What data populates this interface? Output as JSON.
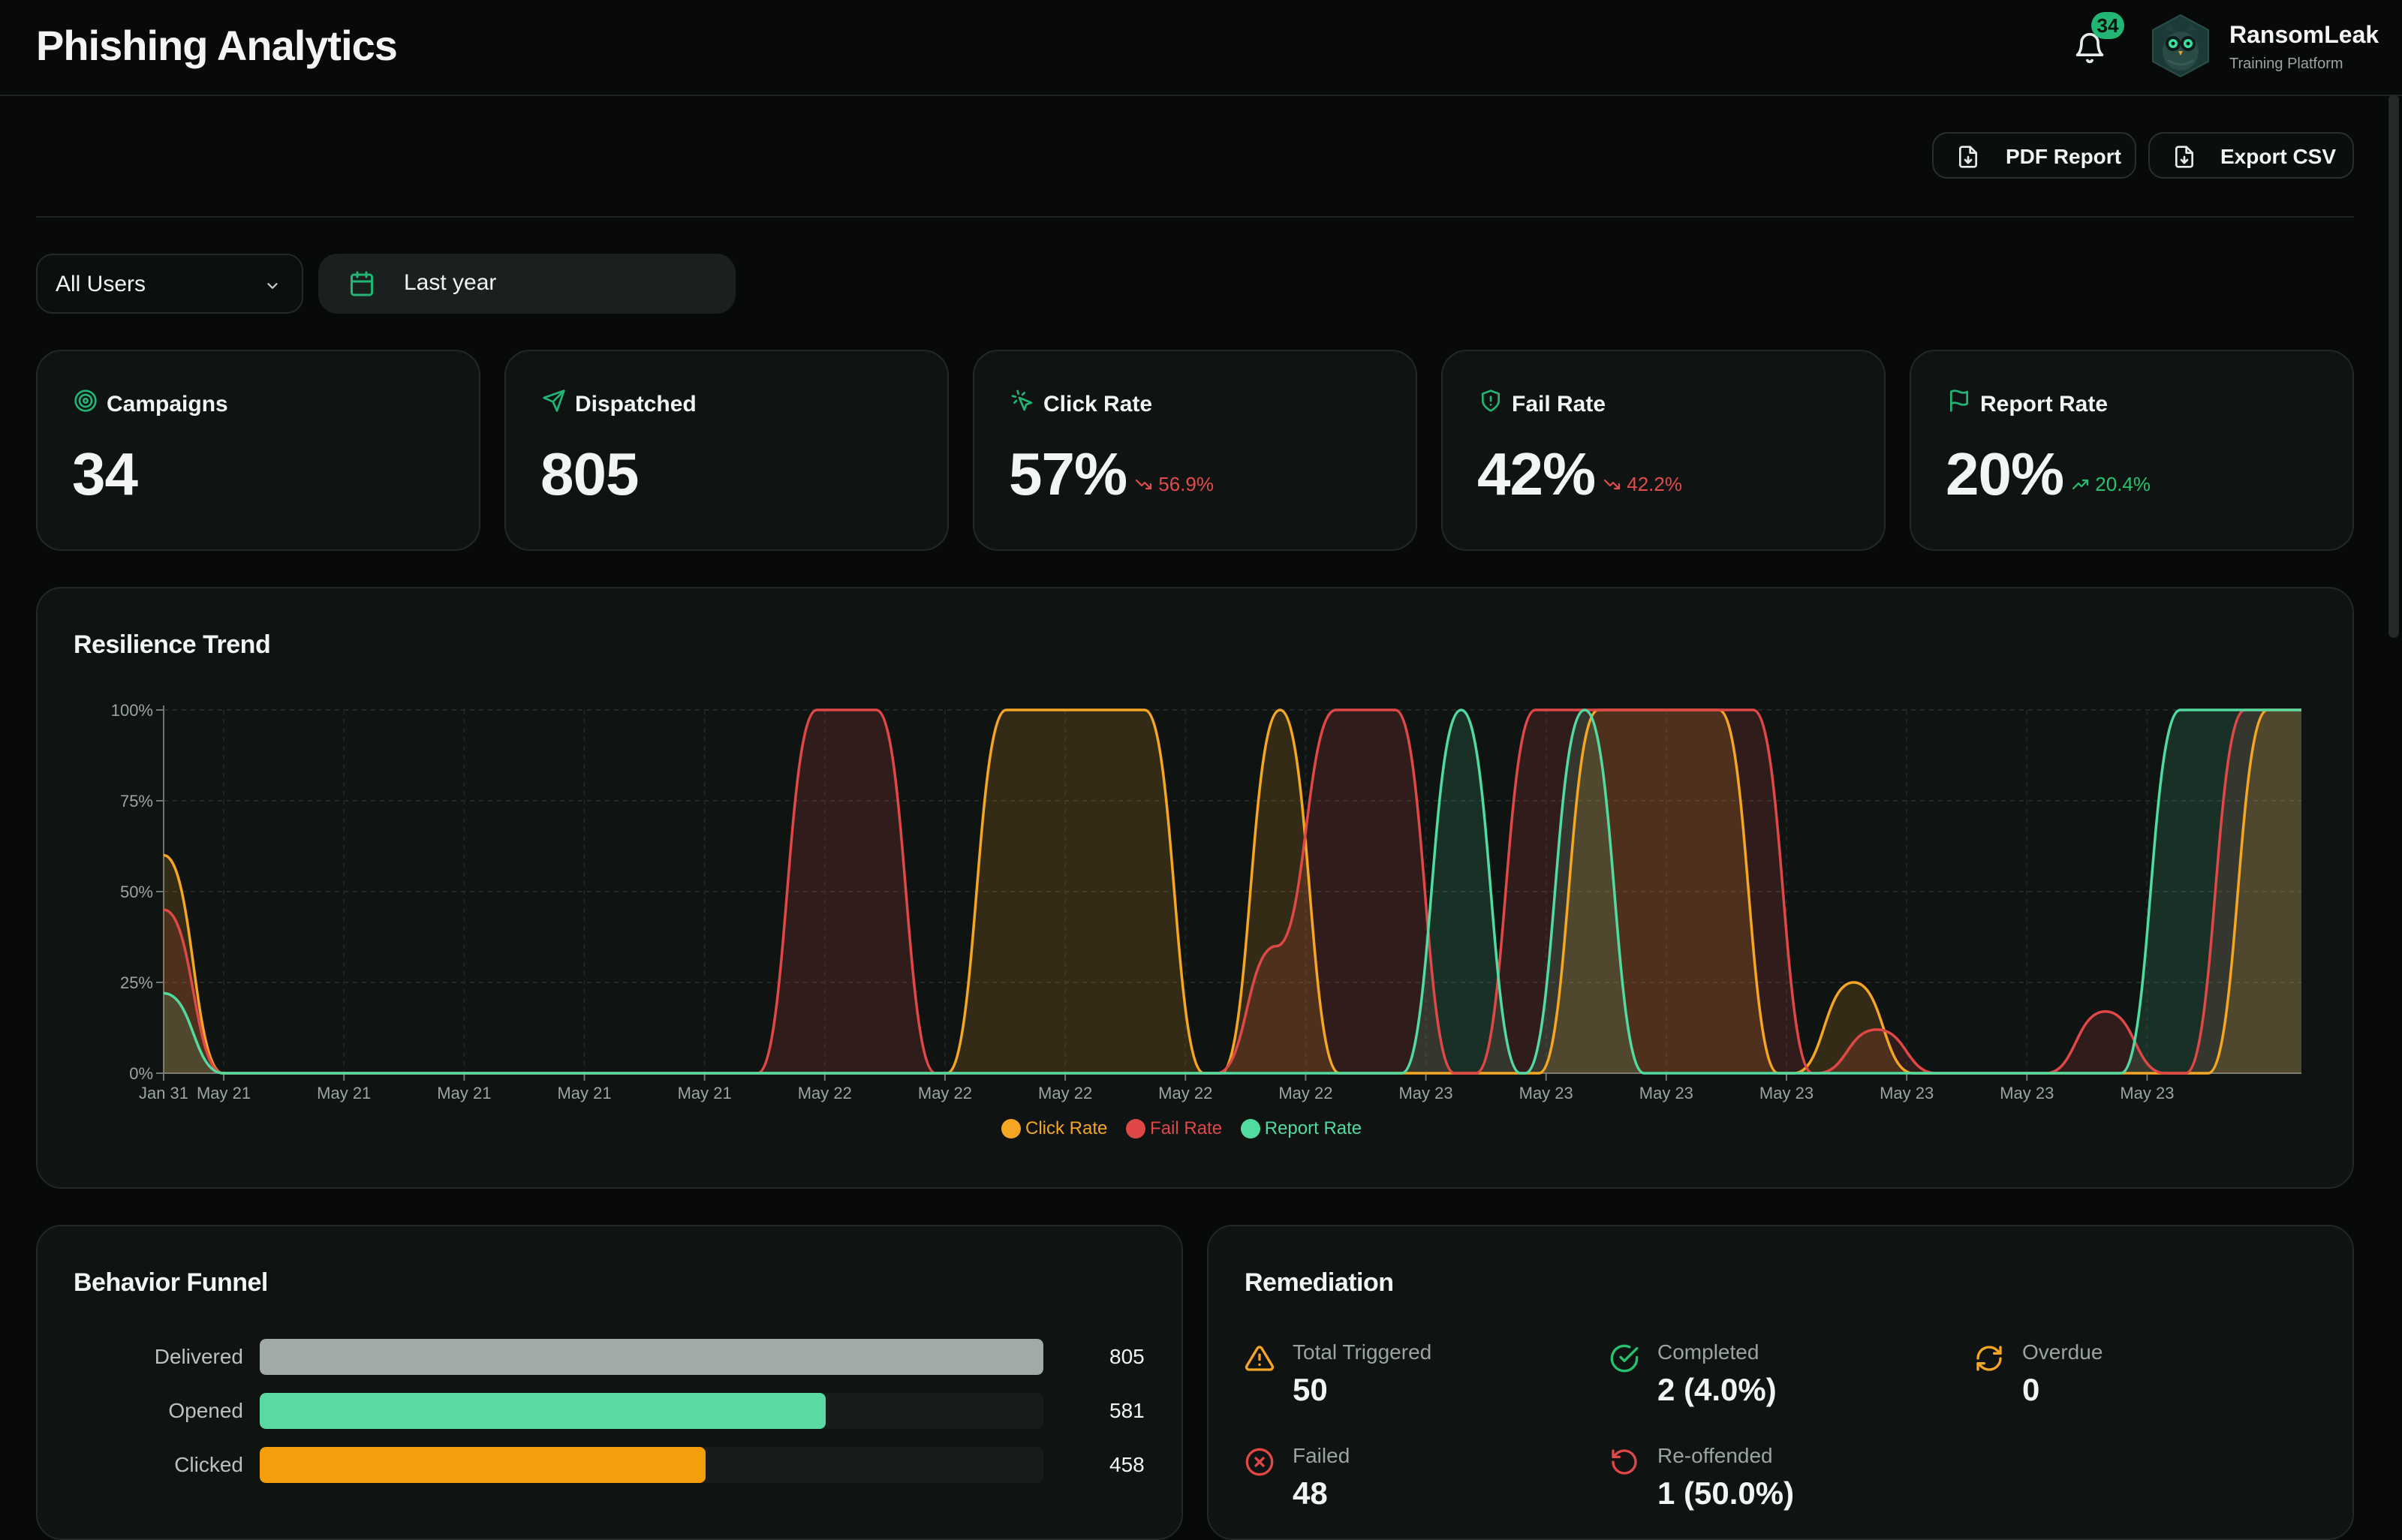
{
  "header": {
    "title": "Phishing Analytics",
    "notifications_count": "34",
    "user_name": "RansomLeak",
    "user_subtitle": "Training Platform"
  },
  "actions": {
    "pdf_label": "PDF Report",
    "csv_label": "Export CSV"
  },
  "filters": {
    "users_selected": "All Users",
    "date_range": "Last year"
  },
  "stats": [
    {
      "label": "Campaigns",
      "value": "34",
      "icon": "target-icon"
    },
    {
      "label": "Dispatched",
      "value": "805",
      "icon": "send-icon"
    },
    {
      "label": "Click Rate",
      "value": "57%",
      "delta": "56.9%",
      "trend": "down",
      "icon": "cursor-click-icon"
    },
    {
      "label": "Fail Rate",
      "value": "42%",
      "delta": "42.2%",
      "trend": "down",
      "icon": "shield-icon"
    },
    {
      "label": "Report Rate",
      "value": "20%",
      "delta": "20.4%",
      "trend": "up",
      "icon": "flag-icon"
    }
  ],
  "colors": {
    "accent": "#22b573",
    "click": "#f5a623",
    "fail": "#e04848",
    "report": "#52dba0",
    "down": "#e14b4b",
    "up": "#27c26f"
  },
  "trend": {
    "title": "Resilience Trend"
  },
  "chart_data": {
    "type": "area",
    "x": [
      "Jan 31",
      "May 21",
      "May 21",
      "May 21",
      "May 21",
      "May 21",
      "May 22",
      "May 22",
      "May 22",
      "May 22",
      "May 22",
      "May 23",
      "May 23",
      "May 23",
      "May 23",
      "May 23",
      "May 23",
      "May 23"
    ],
    "y_ticks": [
      "0%",
      "25%",
      "50%",
      "75%",
      "100%"
    ],
    "ylim": [
      0,
      100
    ],
    "grid": true,
    "legend": "bottom-center",
    "series": [
      {
        "name": "Click Rate",
        "color": "#f5a623",
        "points": [
          [
            0,
            60
          ],
          [
            1,
            0
          ],
          [
            13.19,
            0
          ],
          [
            14.19,
            100
          ],
          [
            16.52,
            100
          ],
          [
            17.52,
            0
          ],
          [
            17.8,
            0
          ],
          [
            18.8,
            100
          ],
          [
            19.8,
            0
          ],
          [
            23.16,
            0
          ],
          [
            24.16,
            100
          ],
          [
            26.19,
            100
          ],
          [
            27.19,
            0
          ],
          [
            27.46,
            0
          ],
          [
            28.46,
            25
          ],
          [
            29.46,
            0
          ],
          [
            34.43,
            0
          ],
          [
            35.43,
            100
          ],
          [
            36.0,
            100
          ]
        ]
      },
      {
        "name": "Fail Rate",
        "color": "#e04848",
        "points": [
          [
            0,
            45
          ],
          [
            1,
            0
          ],
          [
            10.0,
            0
          ],
          [
            11.0,
            100
          ],
          [
            12.0,
            100
          ],
          [
            13.0,
            0
          ],
          [
            17.74,
            0
          ],
          [
            18.74,
            35
          ],
          [
            19.74,
            100
          ],
          [
            20.74,
            100
          ],
          [
            21.74,
            0
          ],
          [
            22.1,
            0
          ],
          [
            23.1,
            100
          ],
          [
            26.77,
            100
          ],
          [
            27.77,
            0
          ],
          [
            27.85,
            0
          ],
          [
            28.85,
            12
          ],
          [
            29.85,
            0
          ],
          [
            31.7,
            0
          ],
          [
            32.7,
            17
          ],
          [
            33.7,
            0
          ],
          [
            34.05,
            0
          ],
          [
            35.05,
            100
          ],
          [
            36.0,
            100
          ]
        ]
      },
      {
        "name": "Report Rate",
        "color": "#52dba0",
        "points": [
          [
            0,
            22
          ],
          [
            1,
            0
          ],
          [
            20.85,
            0
          ],
          [
            21.85,
            100
          ],
          [
            22.85,
            0
          ],
          [
            22.93,
            0
          ],
          [
            23.93,
            100
          ],
          [
            24.93,
            0
          ],
          [
            32.96,
            0
          ],
          [
            33.96,
            100
          ],
          [
            36.0,
            100
          ]
        ]
      }
    ]
  },
  "funnel": {
    "title": "Behavior Funnel",
    "rows": [
      {
        "label": "Delivered",
        "value": "805",
        "fraction": 1.0,
        "color": "#a1aba6"
      },
      {
        "label": "Opened",
        "value": "581",
        "fraction": 0.722,
        "color": "#5bd9a2"
      },
      {
        "label": "Clicked",
        "value": "458",
        "fraction": 0.569,
        "color": "#f59e0b"
      }
    ]
  },
  "remediation": {
    "title": "Remediation",
    "items": [
      {
        "label": "Total Triggered",
        "value": "50",
        "icon": "warning-icon",
        "color": "#f5a623"
      },
      {
        "label": "Completed",
        "value": "2 (4.0%)",
        "icon": "check-circle-icon",
        "color": "#27c26f"
      },
      {
        "label": "Overdue",
        "value": "0",
        "icon": "refresh-icon",
        "color": "#f5a623"
      },
      {
        "label": "Failed",
        "value": "48",
        "icon": "x-circle-icon",
        "color": "#e04848"
      },
      {
        "label": "Re-offended",
        "value": "1 (50.0%)",
        "icon": "undo-icon",
        "color": "#e04848"
      }
    ]
  }
}
